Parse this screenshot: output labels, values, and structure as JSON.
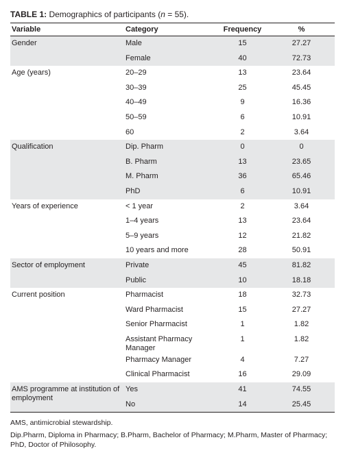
{
  "title": {
    "label": "TABLE 1:",
    "text_before": "Demographics of participants (",
    "italic": "n",
    "text_after": " = 55)."
  },
  "header": [
    "Variable",
    "Category",
    "Frequency",
    "%"
  ],
  "groups": [
    {
      "variable": "Gender",
      "rows": [
        [
          "Male",
          "15",
          "27.27"
        ],
        [
          "Female",
          "40",
          "72.73"
        ]
      ]
    },
    {
      "variable": "Age (years)",
      "rows": [
        [
          "20–29",
          "13",
          "23.64"
        ],
        [
          "30–39",
          "25",
          "45.45"
        ],
        [
          "40–49",
          "9",
          "16.36"
        ],
        [
          "50–59",
          "6",
          "10.91"
        ],
        [
          "60",
          "2",
          "3.64"
        ]
      ]
    },
    {
      "variable": "Qualification",
      "rows": [
        [
          "Dip. Pharm",
          "0",
          "0"
        ],
        [
          "B. Pharm",
          "13",
          "23.65"
        ],
        [
          "M. Pharm",
          "36",
          "65.46"
        ],
        [
          "PhD",
          "6",
          "10.91"
        ]
      ]
    },
    {
      "variable": "Years of experience",
      "rows": [
        [
          "< 1 year",
          "2",
          "3.64"
        ],
        [
          "1–4 years",
          "13",
          "23.64"
        ],
        [
          "5–9 years",
          "12",
          "21.82"
        ],
        [
          "10 years and more",
          "28",
          "50.91"
        ]
      ]
    },
    {
      "variable": "Sector of employment",
      "rows": [
        [
          "Private",
          "45",
          "81.82"
        ],
        [
          "Public",
          "10",
          "18.18"
        ]
      ]
    },
    {
      "variable": "Current position",
      "rows": [
        [
          "Pharmacist",
          "18",
          "32.73"
        ],
        [
          "Ward Pharmacist",
          "15",
          "27.27"
        ],
        [
          "Senior Pharmacist",
          "1",
          "1.82"
        ],
        [
          "Assistant Pharmacy Manager",
          "1",
          "1.82"
        ],
        [
          "Pharmacy Manager",
          "4",
          "7.27"
        ],
        [
          "Clinical Pharmacist",
          "16",
          "29.09"
        ]
      ]
    },
    {
      "variable": "AMS programme at institution of employment",
      "rows": [
        [
          "Yes",
          "41",
          "74.55"
        ],
        [
          "No",
          "14",
          "25.45"
        ]
      ]
    }
  ],
  "footnotes": [
    "AMS, antimicrobial stewardship.",
    "Dip.Pharm, Diploma in Pharmacy;  B.Pharm, Bachelor of Pharmacy; M.Pharm, Master of Pharmacy; PhD, Doctor of Philosophy."
  ]
}
